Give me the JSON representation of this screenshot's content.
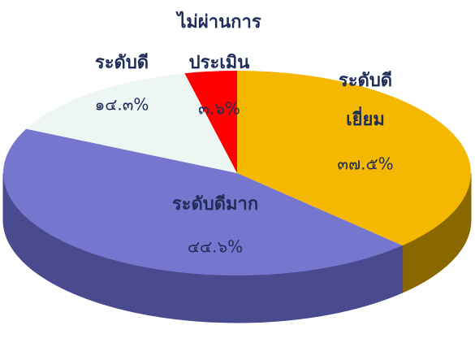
{
  "chart_data": {
    "type": "pie",
    "categories": [
      [
        "ระดับดี",
        "เยี่ยม"
      ],
      [
        "ระดับดีมาก"
      ],
      [
        "ระดับดี"
      ],
      [
        "ไม่ผ่านการ",
        "ประเมิน"
      ]
    ],
    "values": [
      37.5,
      44.6,
      14.3,
      3.6
    ],
    "value_labels": [
      "๓๗.๕%",
      "๔๔.๖%",
      "๑๔.๓%",
      "๓.๖%"
    ],
    "colors": [
      "#f5b800",
      "#7676cf",
      "#eef6f4",
      "#ff0000"
    ],
    "side_colors": [
      "#8a6800",
      "#4a4a8e",
      "#b9c2c0",
      "#a00000"
    ]
  }
}
